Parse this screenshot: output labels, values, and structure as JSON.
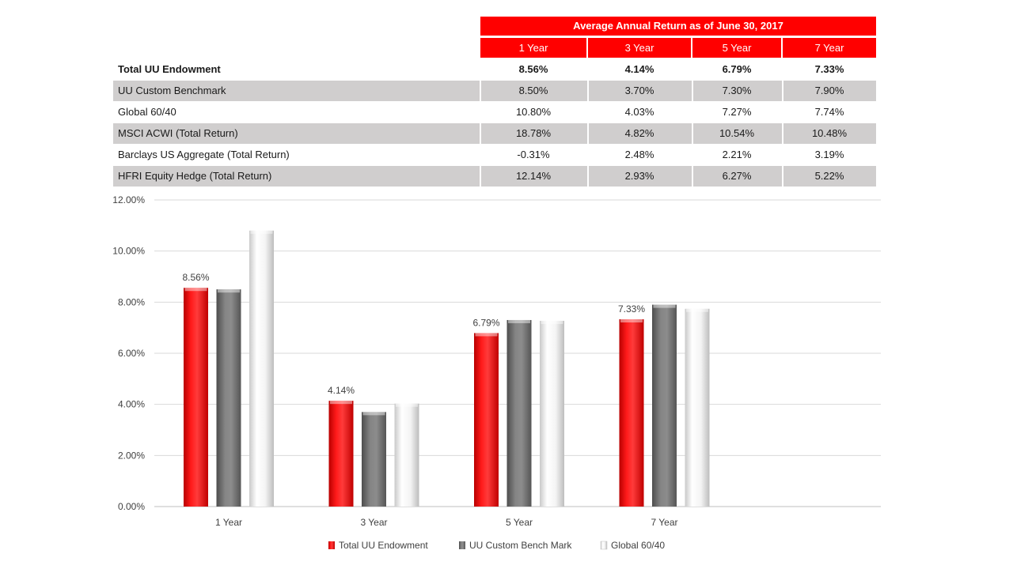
{
  "table": {
    "title": "Average Annual Return as of June 30, 2017",
    "columns": [
      "1 Year",
      "3 Year",
      "5 Year",
      "7 Year"
    ],
    "rows": [
      {
        "label": "Total UU Endowment",
        "values": [
          "8.56%",
          "4.14%",
          "6.79%",
          "7.33%"
        ],
        "bold": true,
        "shaded": false
      },
      {
        "label": "UU Custom Benchmark",
        "values": [
          "8.50%",
          "3.70%",
          "7.30%",
          "7.90%"
        ],
        "bold": false,
        "shaded": true
      },
      {
        "label": "Global 60/40",
        "values": [
          "10.80%",
          "4.03%",
          "7.27%",
          "7.74%"
        ],
        "bold": false,
        "shaded": false
      },
      {
        "label": "MSCI ACWI (Total Return)",
        "values": [
          "18.78%",
          "4.82%",
          "10.54%",
          "10.48%"
        ],
        "bold": false,
        "shaded": true
      },
      {
        "label": "Barclays US Aggregate (Total Return)",
        "values": [
          "-0.31%",
          "2.48%",
          "2.21%",
          "3.19%"
        ],
        "bold": false,
        "shaded": false
      },
      {
        "label": "HFRI Equity Hedge (Total Return)",
        "values": [
          "12.14%",
          "2.93%",
          "6.27%",
          "5.22%"
        ],
        "bold": false,
        "shaded": true
      }
    ]
  },
  "chart_data": {
    "type": "bar",
    "categories": [
      "1 Year",
      "3 Year",
      "5 Year",
      "7 Year"
    ],
    "series": [
      {
        "name": "Total UU Endowment",
        "values": [
          8.56,
          4.14,
          6.79,
          7.33
        ],
        "color": "#ff0000",
        "data_labels": [
          "8.56%",
          "4.14%",
          "6.79%",
          "7.33%"
        ]
      },
      {
        "name": "UU Custom Bench Mark",
        "values": [
          8.5,
          3.7,
          7.3,
          7.9
        ],
        "color": "#7f7f7f"
      },
      {
        "name": "Global 60/40",
        "values": [
          10.8,
          4.03,
          7.27,
          7.74
        ],
        "color": "#f2f2f2"
      }
    ],
    "ylim": [
      0,
      12
    ],
    "yticks": [
      "0.00%",
      "2.00%",
      "4.00%",
      "6.00%",
      "8.00%",
      "10.00%",
      "12.00%"
    ],
    "grid": true,
    "legend_position": "bottom"
  }
}
